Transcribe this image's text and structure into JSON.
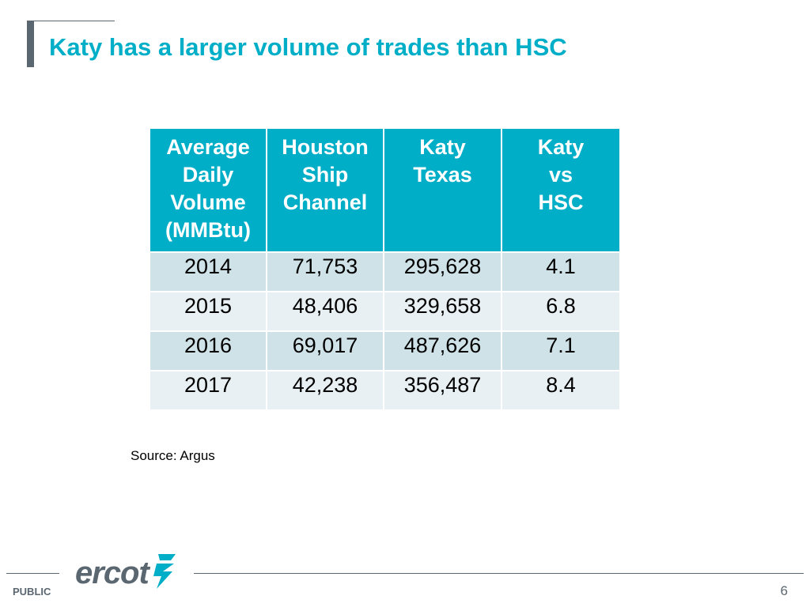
{
  "slide": {
    "title": "Katy has a larger volume of trades than HSC",
    "source": "Source: Argus",
    "footer_label": "PUBLIC",
    "page_number": "6",
    "logo_text": "ercot"
  },
  "table": {
    "headers": [
      "Average\nDaily\nVolume\n(MMBtu)",
      "Houston\nShip\nChannel",
      "Katy\nTexas",
      "Katy\nvs\nHSC"
    ],
    "rows": [
      [
        "2014",
        "71,753",
        "295,628",
        "4.1"
      ],
      [
        "2015",
        "48,406",
        "329,658",
        "6.8"
      ],
      [
        "2016",
        "69,017",
        "487,626",
        "7.1"
      ],
      [
        "2017",
        "42,238",
        "356,487",
        "8.4"
      ]
    ]
  },
  "colors": {
    "accent": "#00aec7",
    "gray": "#5b6770",
    "row_dark": "#cfe2e8",
    "row_light": "#e8f0f3"
  },
  "icons": {
    "logo_mark": "ercot-lightning-bolt-icon"
  }
}
